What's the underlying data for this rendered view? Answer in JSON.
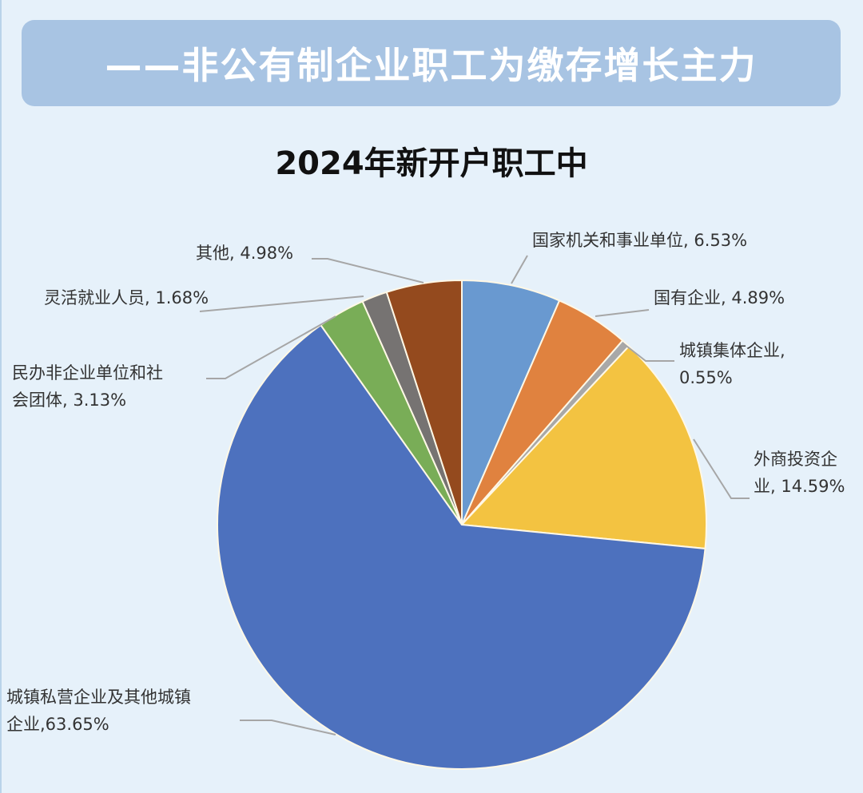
{
  "header": {
    "banner_title": "——非公有制企业职工为缴存增长主力"
  },
  "chart_data": {
    "type": "pie",
    "title": "2024年新开户职工中",
    "start_angle_deg": 0,
    "direction": "clockwise",
    "series": [
      {
        "name": "国家机关和事业单位",
        "value": 6.53,
        "color": "#6999d0",
        "label": [
          "国家机关和事业单位, 6.53%"
        ]
      },
      {
        "name": "国有企业",
        "value": 4.89,
        "color": "#e0823f",
        "label": [
          "国有企业, 4.89%"
        ]
      },
      {
        "name": "城镇集体企业",
        "value": 0.55,
        "color": "#a8a8a8",
        "label": [
          "城镇集体企业,",
          "0.55%"
        ]
      },
      {
        "name": "外商投资企业",
        "value": 14.59,
        "color": "#f3c341",
        "label": [
          "外商投资企",
          "业, 14.59%"
        ]
      },
      {
        "name": "城镇私营企业及其他城镇企业",
        "value": 63.65,
        "color": "#4d71be",
        "label": [
          "城镇私营企业及其他城镇",
          "企业,63.65%"
        ]
      },
      {
        "name": "民办非企业单位和社会团体",
        "value": 3.13,
        "color": "#79ad57",
        "label": [
          "民办非企业单位和社",
          "会团体, 3.13%"
        ]
      },
      {
        "name": "灵活就业人员",
        "value": 1.68,
        "color": "#767372",
        "label": [
          "灵活就业人员, 1.68%"
        ]
      },
      {
        "name": "其他",
        "value": 4.98,
        "color": "#944a1e",
        "label": [
          "其他, 4.98%"
        ]
      }
    ]
  }
}
